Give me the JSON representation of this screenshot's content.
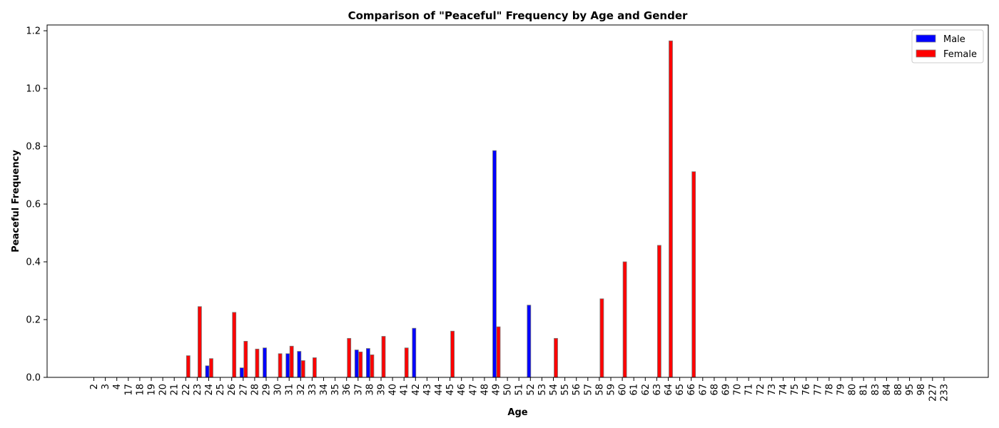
{
  "chart_data": {
    "type": "bar",
    "title": "Comparison of \"Peaceful\" Frequency by Age and Gender",
    "xlabel": "Age",
    "ylabel": "Peaceful Frequency",
    "ylim": [
      0,
      1.22
    ],
    "yticks": [
      0.0,
      0.2,
      0.4,
      0.6,
      0.8,
      1.0,
      1.2
    ],
    "ytick_labels": [
      "0.0",
      "0.2",
      "0.4",
      "0.6",
      "0.8",
      "1.0",
      "1.2"
    ],
    "legend_position": "top-right",
    "categories": [
      "2",
      "3",
      "4",
      "17",
      "18",
      "19",
      "20",
      "21",
      "22",
      "23",
      "24",
      "25",
      "26",
      "27",
      "28",
      "29",
      "30",
      "31",
      "32",
      "33",
      "34",
      "35",
      "36",
      "37",
      "38",
      "39",
      "40",
      "41",
      "42",
      "43",
      "44",
      "45",
      "46",
      "47",
      "48",
      "49",
      "50",
      "51",
      "52",
      "53",
      "54",
      "55",
      "56",
      "57",
      "58",
      "59",
      "60",
      "61",
      "62",
      "63",
      "64",
      "65",
      "66",
      "67",
      "68",
      "69",
      "70",
      "71",
      "72",
      "73",
      "74",
      "75",
      "76",
      "77",
      "78",
      "79",
      "80",
      "81",
      "83",
      "84",
      "88",
      "95",
      "98",
      "227",
      "233"
    ],
    "series": [
      {
        "name": "Male",
        "color": "#0000ff",
        "values": [
          0,
          0,
          0,
          0,
          0,
          0,
          0,
          0,
          0,
          0,
          0.04,
          0,
          0,
          0.033,
          0,
          0.102,
          0,
          0.082,
          0.09,
          0,
          0,
          0,
          0,
          0.095,
          0.1,
          0,
          0,
          0,
          0.17,
          0,
          0,
          0,
          0,
          0,
          0,
          0.785,
          0,
          0,
          0.25,
          0,
          0,
          0,
          0,
          0,
          0,
          0,
          0,
          0,
          0,
          0,
          0,
          0,
          0,
          0,
          0,
          0,
          0,
          0,
          0,
          0,
          0,
          0,
          0,
          0,
          0,
          0,
          0,
          0,
          0,
          0,
          0,
          0,
          0,
          0,
          0
        ]
      },
      {
        "name": "Female",
        "color": "#ff0000",
        "values": [
          0,
          0,
          0,
          0,
          0,
          0,
          0,
          0,
          0.075,
          0.245,
          0.065,
          0,
          0.225,
          0.125,
          0.098,
          0,
          0.082,
          0.108,
          0.058,
          0.068,
          0,
          0,
          0.135,
          0.088,
          0.078,
          0.142,
          0,
          0.102,
          0,
          0,
          0,
          0.16,
          0,
          0,
          0,
          0.175,
          0,
          0,
          0,
          0,
          0.135,
          0,
          0,
          0,
          0.272,
          0,
          0.4,
          0,
          0,
          0.457,
          1.165,
          0,
          0.712,
          0,
          0,
          0,
          0,
          0,
          0,
          0,
          0,
          0,
          0,
          0,
          0,
          0,
          0,
          0,
          0,
          0,
          0,
          0,
          0,
          0,
          0
        ]
      }
    ]
  }
}
